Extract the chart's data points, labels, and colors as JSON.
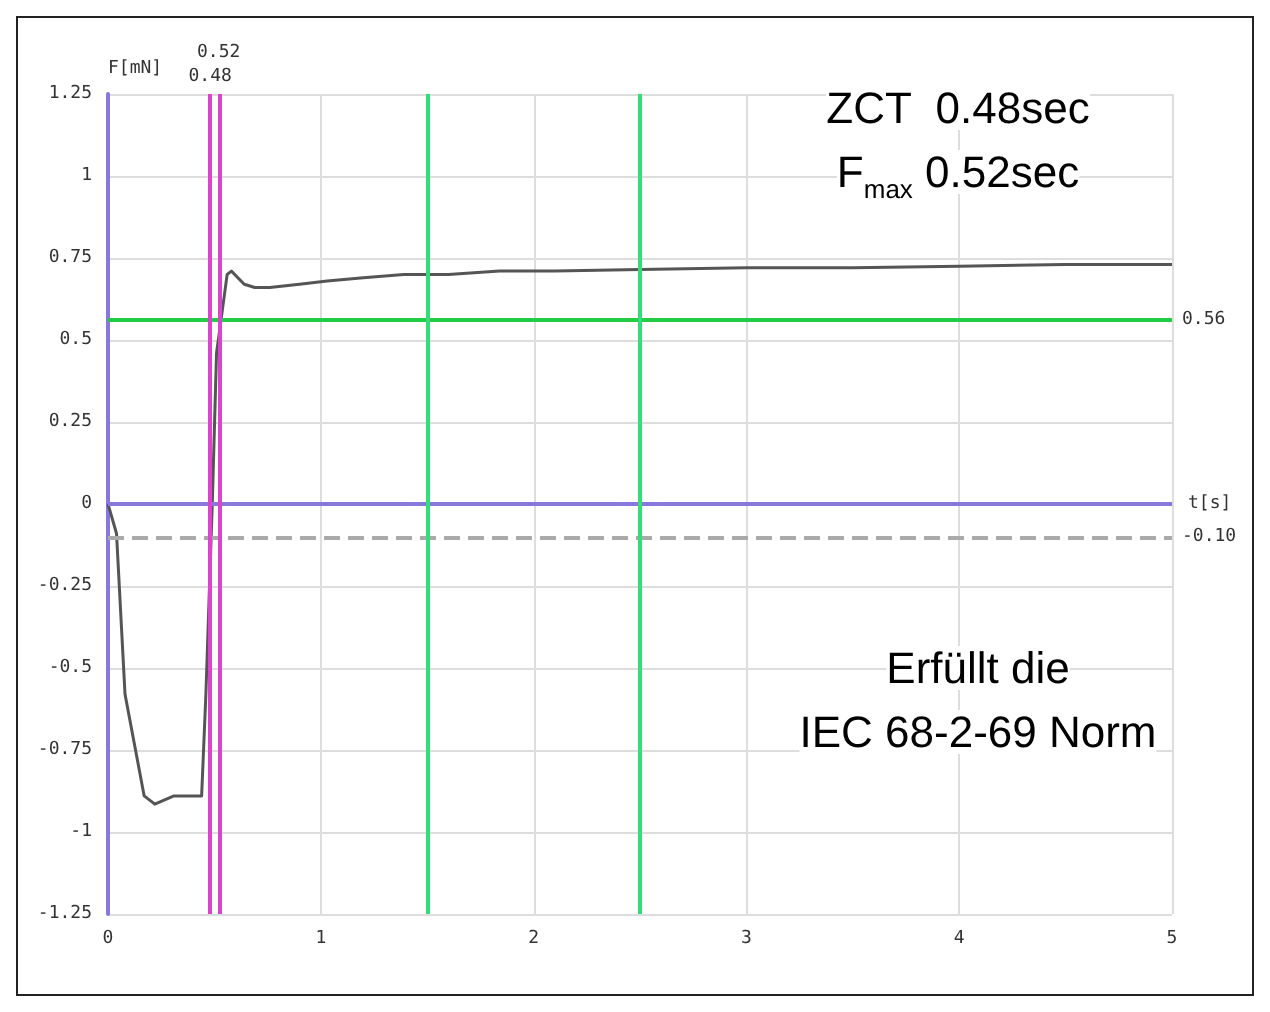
{
  "chart_data": {
    "type": "line",
    "xlabel": "t[s]",
    "ylabel": "F[mN]",
    "series": [
      {
        "color": "#555555",
        "x": [
          0,
          0.04,
          0.08,
          0.17,
          0.22,
          0.31,
          0.44,
          0.46,
          0.49,
          0.51,
          0.56,
          0.58,
          0.64,
          0.69,
          0.76,
          0.9,
          1.03,
          1.2,
          1.39,
          1.6,
          1.84,
          2.1,
          2.5,
          3,
          3.5,
          4,
          4.5,
          5
        ],
        "values": [
          0,
          -0.09,
          -0.58,
          -0.89,
          -0.915,
          -0.89,
          -0.89,
          -0.58,
          0,
          0.46,
          0.7,
          0.71,
          0.67,
          0.66,
          0.66,
          0.67,
          0.68,
          0.69,
          0.7,
          0.7,
          0.71,
          0.71,
          0.715,
          0.72,
          0.72,
          0.725,
          0.73,
          0.73
        ]
      }
    ],
    "xlim": [
      0,
      5
    ],
    "xticks": [
      0,
      1,
      2,
      3,
      4,
      5
    ],
    "ylim": [
      -1.25,
      1.25
    ],
    "yticks": [
      -1.25,
      -1,
      -0.75,
      -0.5,
      -0.25,
      0,
      0.25,
      0.5,
      0.75,
      1,
      1.25
    ],
    "grid": true,
    "marker": "none",
    "line_style": "solid",
    "ref_lines": [
      {
        "axis": "y",
        "value": 0.56,
        "label": "0.56",
        "color": "#22cc44"
      },
      {
        "axis": "y",
        "value": 0,
        "color": "#8877dd"
      },
      {
        "axis": "y",
        "value": -0.1,
        "label": "-0.10",
        "color": "#aaaaaa",
        "line_style": "dashed"
      },
      {
        "axis": "x",
        "value": 0.48,
        "label": "0.48",
        "color": "#dd44cc"
      },
      {
        "axis": "x",
        "value": 0.52,
        "label": "0.52",
        "color": "#dd44cc"
      },
      {
        "axis": "x",
        "value": 1.5,
        "color": "#33dd77"
      },
      {
        "axis": "x",
        "value": 2.5,
        "color": "#33dd77"
      }
    ],
    "annotations": [
      "ZCT  0.48sec",
      "F$_{max}$ 0.52sec",
      "Erfüllt die",
      "IEC 68-2-69 Norm"
    ]
  }
}
